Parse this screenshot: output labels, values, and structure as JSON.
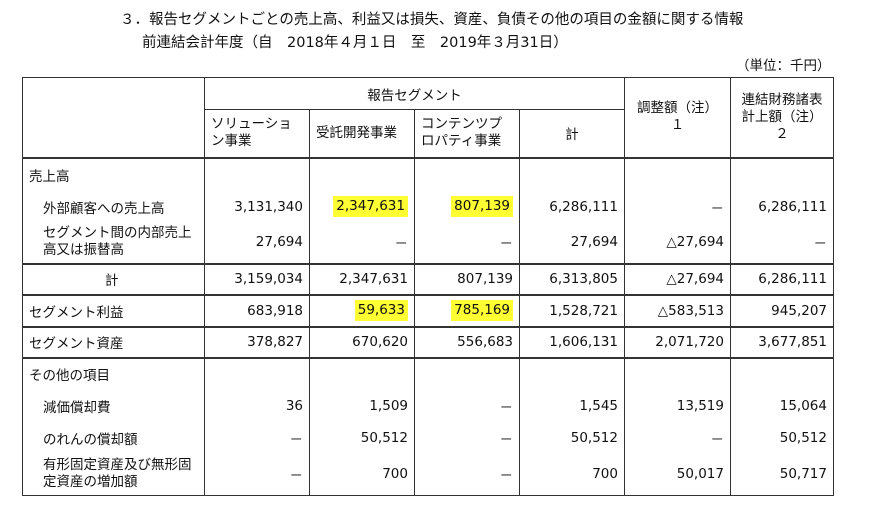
{
  "title": "３．報告セグメントごとの売上高、利益又は損失、資産、負債その他の項目の金額に関する情報",
  "subtitle": "前連結会計年度（自　2018年４月１日　至　2019年３月31日）",
  "unit": "（単位：千円）",
  "header": {
    "segment_group": "報告セグメント",
    "col_solution": "ソリューション事業",
    "col_contract": "受託開発事業",
    "col_content": "コンテンツプロパティ事業",
    "col_total": "計",
    "col_adjust": "調整額（注）１",
    "col_consol": "連結財務諸表計上額（注）２"
  },
  "rows": {
    "sales_header": "売上高",
    "external_sales": {
      "label": "外部顧客への売上高",
      "solution": "3,131,340",
      "contract": "2,347,631",
      "content": "807,139",
      "total": "6,286,111",
      "adjust": "－",
      "consol": "6,286,111"
    },
    "intersegment": {
      "label": "セグメント間の内部売上高又は振替高",
      "solution": "27,694",
      "contract": "－",
      "content": "－",
      "total": "27,694",
      "adjust": "△27,694",
      "consol": "－"
    },
    "subtotal": {
      "label": "計",
      "solution": "3,159,034",
      "contract": "2,347,631",
      "content": "807,139",
      "total": "6,313,805",
      "adjust": "△27,694",
      "consol": "6,286,111"
    },
    "profit": {
      "label": "セグメント利益",
      "solution": "683,918",
      "contract": "59,633",
      "content": "785,169",
      "total": "1,528,721",
      "adjust": "△583,513",
      "consol": "945,207"
    },
    "assets": {
      "label": "セグメント資産",
      "solution": "378,827",
      "contract": "670,620",
      "content": "556,683",
      "total": "1,606,131",
      "adjust": "2,071,720",
      "consol": "3,677,851"
    },
    "other_header": "その他の項目",
    "depreciation": {
      "label": "減価償却費",
      "solution": "36",
      "contract": "1,509",
      "content": "－",
      "total": "1,545",
      "adjust": "13,519",
      "consol": "15,064"
    },
    "goodwill": {
      "label": "のれんの償却額",
      "solution": "－",
      "contract": "50,512",
      "content": "－",
      "total": "50,512",
      "adjust": "－",
      "consol": "50,512"
    },
    "fixed_assets": {
      "label": "有形固定資産及び無形固定資産の増加額",
      "solution": "－",
      "contract": "700",
      "content": "－",
      "total": "700",
      "adjust": "50,017",
      "consol": "50,717"
    }
  },
  "highlight_color": "#ffff33"
}
